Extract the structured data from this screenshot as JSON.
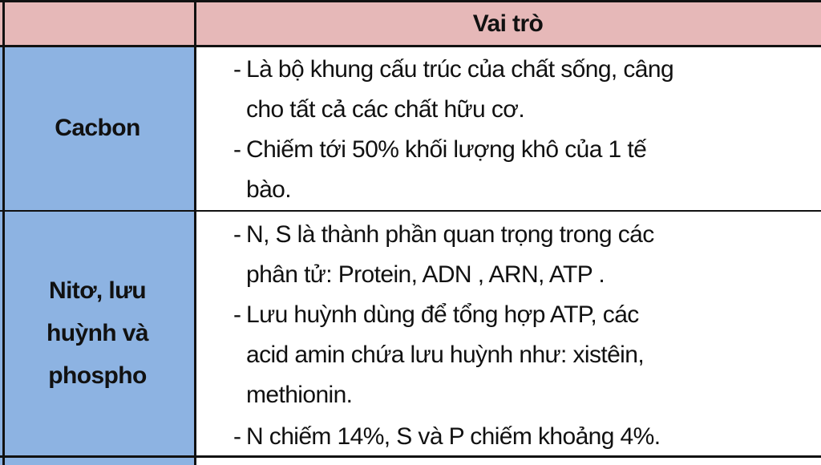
{
  "header": {
    "col1": "",
    "col2": "Vai trò"
  },
  "rows": [
    {
      "label_lines": [
        "Cacbon"
      ],
      "lines": [
        {
          "dash": "-",
          "text": "Là  bộ khung cấu trúc của chất sống, câng"
        },
        {
          "dash": "",
          "text": "cho tất cả các chất hữu cơ."
        },
        {
          "dash": "-",
          "text": "Chiếm tới 50% khối lượng khô của 1 tế"
        },
        {
          "dash": "",
          "text": "bào."
        }
      ]
    },
    {
      "label_lines": [
        "Nitơ, lưu",
        "huỳnh và",
        "phospho"
      ],
      "lines": [
        {
          "dash": "-",
          "text": "N, S là thành phần quan trọng trong các"
        },
        {
          "dash": "",
          "text": "phân tử: Protein, ADN , ARN, ATP ."
        },
        {
          "dash": "-",
          "text": "Lưu huỳnh dùng để tổng hợp ATP, các"
        },
        {
          "dash": "",
          "text": "acid amin chứa lưu huỳnh như: xistêin,"
        },
        {
          "dash": "",
          "text": "methionin."
        },
        {
          "dash": "-",
          "text": "N chiếm 14%, S và P chiếm khoảng 4%."
        }
      ]
    }
  ],
  "colors": {
    "header_bg": "#e6b8b8",
    "label_bg": "#8db3e2",
    "border": "#111111"
  }
}
